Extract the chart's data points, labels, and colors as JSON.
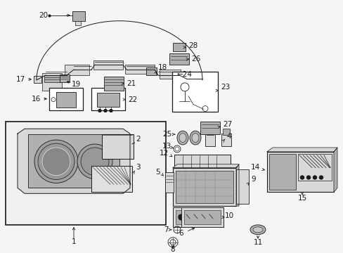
{
  "bg_color": "#f5f5f5",
  "line_color": "#1a1a1a",
  "label_fontsize": 7.5,
  "fig_w": 4.89,
  "fig_h": 3.6,
  "dpi": 100
}
